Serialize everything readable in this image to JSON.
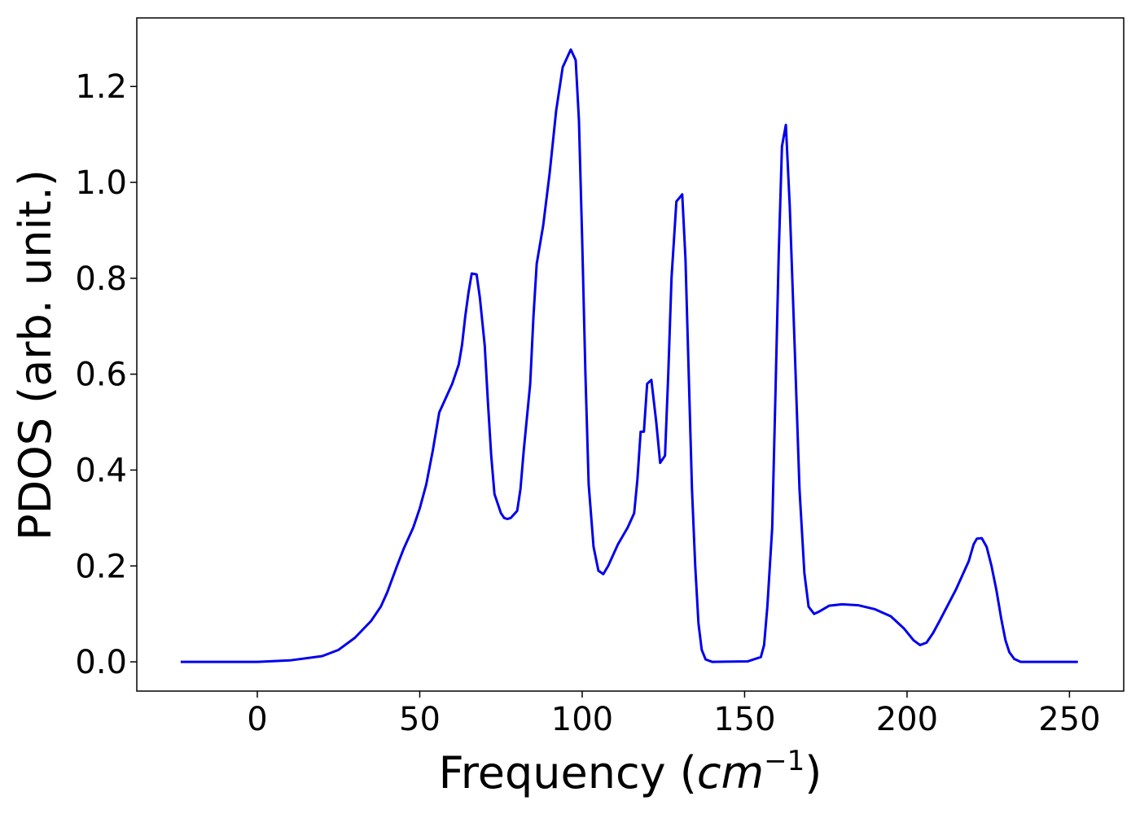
{
  "chart_data": {
    "type": "line",
    "xlabel_parts": [
      "Frequency (",
      "cm",
      "−1",
      ")"
    ],
    "ylabel": "PDOS (arb. unit.)",
    "xlim": [
      -37.1,
      266.7
    ],
    "ylim": [
      -0.061,
      1.343
    ],
    "xticks": [
      0,
      50,
      100,
      150,
      200,
      250
    ],
    "yticks": [
      {
        "value": 0,
        "label": "0.0"
      },
      {
        "value": 0.2,
        "label": "0.2"
      },
      {
        "value": 0.4,
        "label": "0.4"
      },
      {
        "value": 0.6,
        "label": "0.6"
      },
      {
        "value": 0.8,
        "label": "0.8"
      },
      {
        "value": 1.0,
        "label": "1.0"
      },
      {
        "value": 1.2,
        "label": "1.2"
      }
    ],
    "grid": false,
    "series": [
      {
        "color": "#0000ee",
        "x": [
          -23.6,
          0,
          10,
          20,
          25,
          30,
          35,
          38,
          40,
          43,
          45,
          48,
          50,
          52,
          54,
          56,
          58,
          60,
          62,
          63,
          64,
          65,
          66,
          67.5,
          68.5,
          70,
          71,
          72,
          73,
          75,
          76,
          77,
          78,
          80,
          81,
          82,
          84,
          85,
          86,
          88,
          90,
          92,
          94,
          96.5,
          98,
          99,
          100,
          101,
          102,
          103.5,
          105,
          106.5,
          108,
          111,
          114,
          116,
          117,
          118,
          119,
          120,
          121.3,
          122.8,
          124,
          125.5,
          126.5,
          127.5,
          129,
          130.8,
          131.8,
          132.8,
          133.8,
          134.8,
          135.8,
          136.8,
          138,
          140,
          151,
          155,
          156,
          157,
          158.5,
          159.5,
          160.5,
          161.5,
          162.7,
          163.9,
          165.4,
          166.9,
          168.4,
          169.7,
          171.4,
          173,
          176,
          180,
          185,
          190,
          195,
          199,
          202,
          204,
          206,
          208,
          210,
          215,
          219,
          220.5,
          221.5,
          223,
          224.5,
          226,
          227.5,
          229,
          230.3,
          231.5,
          233,
          235,
          252.6
        ],
        "values": [
          0,
          0,
          0.003,
          0.012,
          0.025,
          0.05,
          0.085,
          0.115,
          0.145,
          0.2,
          0.235,
          0.28,
          0.32,
          0.37,
          0.44,
          0.52,
          0.55,
          0.58,
          0.62,
          0.66,
          0.72,
          0.77,
          0.81,
          0.808,
          0.76,
          0.66,
          0.54,
          0.43,
          0.35,
          0.31,
          0.3,
          0.298,
          0.3,
          0.315,
          0.36,
          0.44,
          0.58,
          0.72,
          0.83,
          0.91,
          1.02,
          1.15,
          1.24,
          1.277,
          1.255,
          1.13,
          0.88,
          0.6,
          0.37,
          0.24,
          0.19,
          0.183,
          0.2,
          0.245,
          0.28,
          0.31,
          0.38,
          0.48,
          0.48,
          0.58,
          0.588,
          0.5,
          0.415,
          0.43,
          0.6,
          0.8,
          0.96,
          0.975,
          0.84,
          0.6,
          0.36,
          0.2,
          0.08,
          0.025,
          0.005,
          0,
          0.001,
          0.01,
          0.035,
          0.115,
          0.28,
          0.56,
          0.85,
          1.075,
          1.12,
          0.95,
          0.66,
          0.36,
          0.185,
          0.115,
          0.1,
          0.105,
          0.117,
          0.12,
          0.118,
          0.11,
          0.095,
          0.07,
          0.045,
          0.035,
          0.04,
          0.06,
          0.085,
          0.15,
          0.21,
          0.245,
          0.257,
          0.258,
          0.24,
          0.2,
          0.15,
          0.09,
          0.045,
          0.02,
          0.006,
          0,
          0
        ]
      }
    ]
  }
}
